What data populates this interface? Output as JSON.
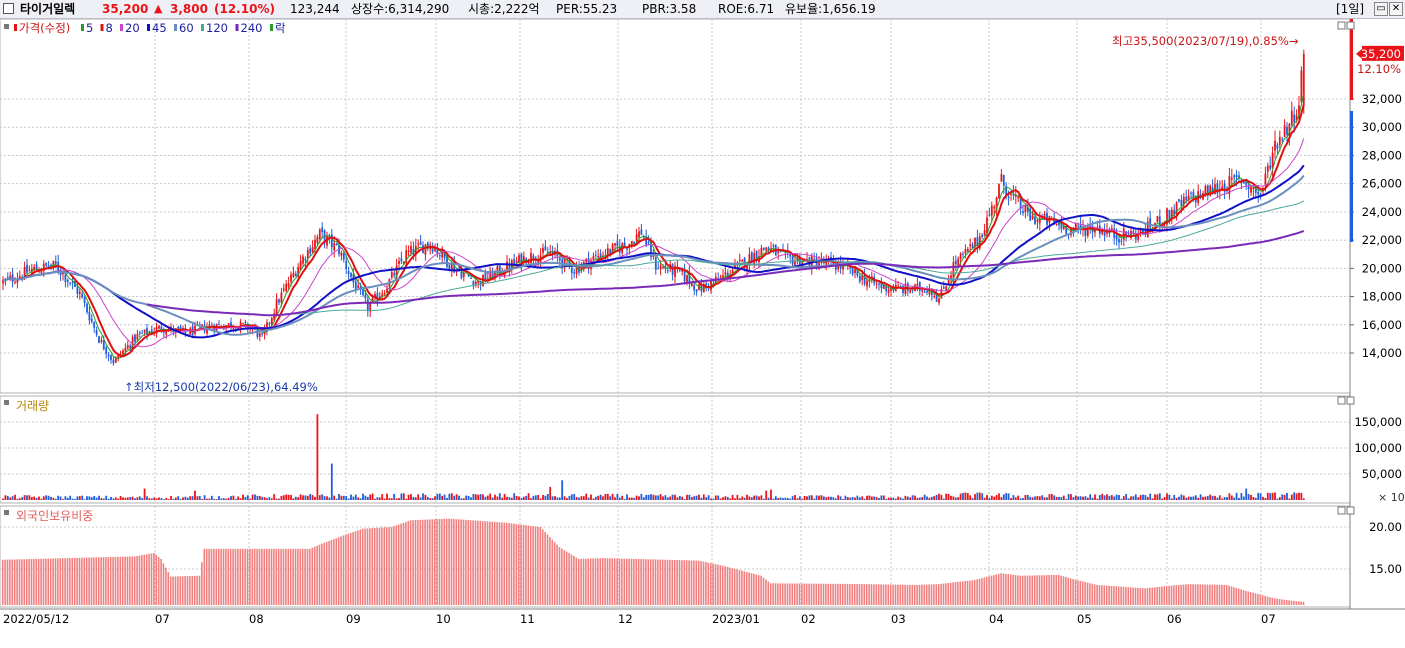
{
  "header": {
    "stock_name": "타이거일렉",
    "price": "35,200",
    "change_arrow": "▲",
    "change": "3,800",
    "change_pct": "(12.10%)",
    "volume": "123,244",
    "listed_shares": "상장수:6,314,290",
    "market_cap": "시총:2,222억",
    "per": "PER:55.23",
    "pbr": "PBR:3.58",
    "roe": "ROE:6.71",
    "float_ratio": "유보율:1,656.19",
    "period": "[1일]"
  },
  "colors": {
    "up": "#e8141a",
    "down": "#1f5fd9",
    "ma5": "#2a9a2a",
    "ma8": "#e01010",
    "ma20": "#cc44cc",
    "ma45": "#1010c8",
    "ma60": "#6a8fbf",
    "ma120": "#4aa89a",
    "ma240": "#7a2ab8",
    "foreign_bar": "#f08080",
    "grid": "#c8c8c8"
  },
  "price_panel": {
    "legend": [
      {
        "label": "가격(수정)",
        "color": "#e8141a"
      },
      {
        "label": "5",
        "color": "#2a9a2a"
      },
      {
        "label": "8",
        "color": "#e01010"
      },
      {
        "label": "20",
        "color": "#cc44cc"
      },
      {
        "label": "45",
        "color": "#1010c8"
      },
      {
        "label": "60",
        "color": "#6a8fbf"
      },
      {
        "label": "120",
        "color": "#4aa89a"
      },
      {
        "label": "240",
        "color": "#7a2ab8"
      },
      {
        "label": "락",
        "color": "#2a9a2a"
      }
    ],
    "high_annotation": "최고35,500(2023/07/19),0.85%→",
    "low_annotation": "↑최저12,500(2022/06/23),64.49%",
    "current_price_label": "35,200",
    "current_pct_label": "12.10%"
  },
  "volume_panel": {
    "legend": "거래량",
    "unit_label": "× 10"
  },
  "foreign_panel": {
    "legend": "외국인보유비중"
  },
  "chart_data": [
    {
      "type": "candlestick",
      "title": "",
      "x_axis": {
        "start": "2022/05/12",
        "ticks": [
          "2022/05/12",
          "07",
          "08",
          "09",
          "10",
          "11",
          "12",
          "2023/01",
          "02",
          "03",
          "04",
          "05",
          "06",
          "07"
        ]
      },
      "y_ticks": [
        14000,
        16000,
        18000,
        20000,
        22000,
        24000,
        26000,
        28000,
        30000,
        32000
      ],
      "ylim": [
        12000,
        37000
      ],
      "high": {
        "value": 35500,
        "date": "2023/07/19",
        "pct_from_current": 0.85
      },
      "low": {
        "value": 12500,
        "date": "2022/06/23",
        "pct_from_current": 64.49
      },
      "last_close": 35200,
      "price_path": [
        [
          0,
          19000
        ],
        [
          12,
          19900
        ],
        [
          22,
          20200
        ],
        [
          32,
          18200
        ],
        [
          40,
          15000
        ],
        [
          46,
          13400
        ],
        [
          56,
          15200
        ],
        [
          66,
          15800
        ],
        [
          76,
          15400
        ],
        [
          86,
          15900
        ],
        [
          96,
          16000
        ],
        [
          104,
          15800
        ],
        [
          108,
          15000
        ],
        [
          114,
          17500
        ],
        [
          124,
          20500
        ],
        [
          132,
          22400
        ],
        [
          140,
          21300
        ],
        [
          146,
          19000
        ],
        [
          152,
          17200
        ],
        [
          160,
          18800
        ],
        [
          168,
          21000
        ],
        [
          178,
          21800
        ],
        [
          188,
          20000
        ],
        [
          198,
          19000
        ],
        [
          208,
          19900
        ],
        [
          218,
          20800
        ],
        [
          228,
          21100
        ],
        [
          238,
          19900
        ],
        [
          248,
          20900
        ],
        [
          260,
          21700
        ],
        [
          266,
          22600
        ],
        [
          272,
          20200
        ],
        [
          282,
          19700
        ],
        [
          290,
          18500
        ],
        [
          300,
          19400
        ],
        [
          310,
          20600
        ],
        [
          318,
          21500
        ],
        [
          326,
          20700
        ],
        [
          334,
          20500
        ],
        [
          342,
          20400
        ],
        [
          350,
          20100
        ],
        [
          358,
          19300
        ],
        [
          366,
          18700
        ],
        [
          376,
          18500
        ],
        [
          386,
          18600
        ],
        [
          390,
          17800
        ],
        [
          396,
          20200
        ],
        [
          406,
          21900
        ],
        [
          412,
          24200
        ],
        [
          416,
          26200
        ],
        [
          420,
          25100
        ],
        [
          428,
          23600
        ],
        [
          436,
          23300
        ],
        [
          446,
          22700
        ],
        [
          456,
          22900
        ],
        [
          464,
          22300
        ],
        [
          474,
          22500
        ],
        [
          484,
          23600
        ],
        [
          494,
          24900
        ],
        [
          506,
          25700
        ],
        [
          516,
          26300
        ],
        [
          524,
          25200
        ],
        [
          530,
          28800
        ],
        [
          536,
          30300
        ],
        [
          540,
          31800
        ],
        [
          542,
          35200
        ]
      ],
      "series": [
        {
          "name": "5",
          "period": 5
        },
        {
          "name": "8",
          "period": 8
        },
        {
          "name": "20",
          "period": 20
        },
        {
          "name": "45",
          "period": 45
        },
        {
          "name": "60",
          "period": 60
        },
        {
          "name": "120",
          "period": 120
        },
        {
          "name": "240",
          "period": 240
        }
      ]
    },
    {
      "type": "bar",
      "title": "",
      "y_ticks": [
        50000,
        100000,
        150000
      ],
      "ylim": [
        0,
        180000
      ],
      "volume_baseline": [
        [
          0,
          6000
        ],
        [
          60,
          4500
        ],
        [
          120,
          7000
        ],
        [
          200,
          8000
        ],
        [
          260,
          7000
        ],
        [
          320,
          6000
        ],
        [
          380,
          5500
        ],
        [
          400,
          9000
        ],
        [
          440,
          7000
        ],
        [
          500,
          8000
        ],
        [
          542,
          9000
        ]
      ],
      "spikes": [
        {
          "i": 131,
          "v": 165000
        },
        {
          "i": 137,
          "v": 70000
        },
        {
          "i": 131,
          "v": 165000
        },
        {
          "i": 233,
          "v": 38000
        },
        {
          "i": 228,
          "v": 25000
        },
        {
          "i": 59,
          "v": 22000
        },
        {
          "i": 80,
          "v": 18000
        },
        {
          "i": 318,
          "v": 18000
        },
        {
          "i": 320,
          "v": 20000
        },
        {
          "i": 518,
          "v": 22000
        },
        {
          "i": 540,
          "v": 14000
        }
      ]
    },
    {
      "type": "bar",
      "title": "",
      "y_ticks": [
        15.0,
        20.0
      ],
      "ylim": [
        11.0,
        22.5
      ],
      "foreign_ratio_path": [
        [
          0,
          16.1
        ],
        [
          55,
          16.5
        ],
        [
          63,
          16.9
        ],
        [
          66,
          16.2
        ],
        [
          70,
          14.1
        ],
        [
          82,
          14.2
        ],
        [
          84,
          17.4
        ],
        [
          128,
          17.4
        ],
        [
          132,
          17.9
        ],
        [
          142,
          19.0
        ],
        [
          150,
          19.8
        ],
        [
          162,
          20.0
        ],
        [
          170,
          20.8
        ],
        [
          186,
          21.0
        ],
        [
          210,
          20.5
        ],
        [
          224,
          20.0
        ],
        [
          232,
          17.6
        ],
        [
          240,
          16.2
        ],
        [
          250,
          16.3
        ],
        [
          290,
          16.0
        ],
        [
          300,
          15.4
        ],
        [
          316,
          14.2
        ],
        [
          320,
          13.3
        ],
        [
          360,
          13.2
        ],
        [
          380,
          13.1
        ],
        [
          390,
          13.2
        ],
        [
          405,
          13.7
        ],
        [
          416,
          14.5
        ],
        [
          424,
          14.2
        ],
        [
          440,
          14.3
        ],
        [
          446,
          13.8
        ],
        [
          456,
          13.1
        ],
        [
          476,
          12.7
        ],
        [
          486,
          13.0
        ],
        [
          494,
          13.2
        ],
        [
          510,
          13.1
        ],
        [
          518,
          12.4
        ],
        [
          530,
          11.5
        ],
        [
          538,
          11.2
        ],
        [
          542,
          11.1
        ]
      ]
    }
  ]
}
